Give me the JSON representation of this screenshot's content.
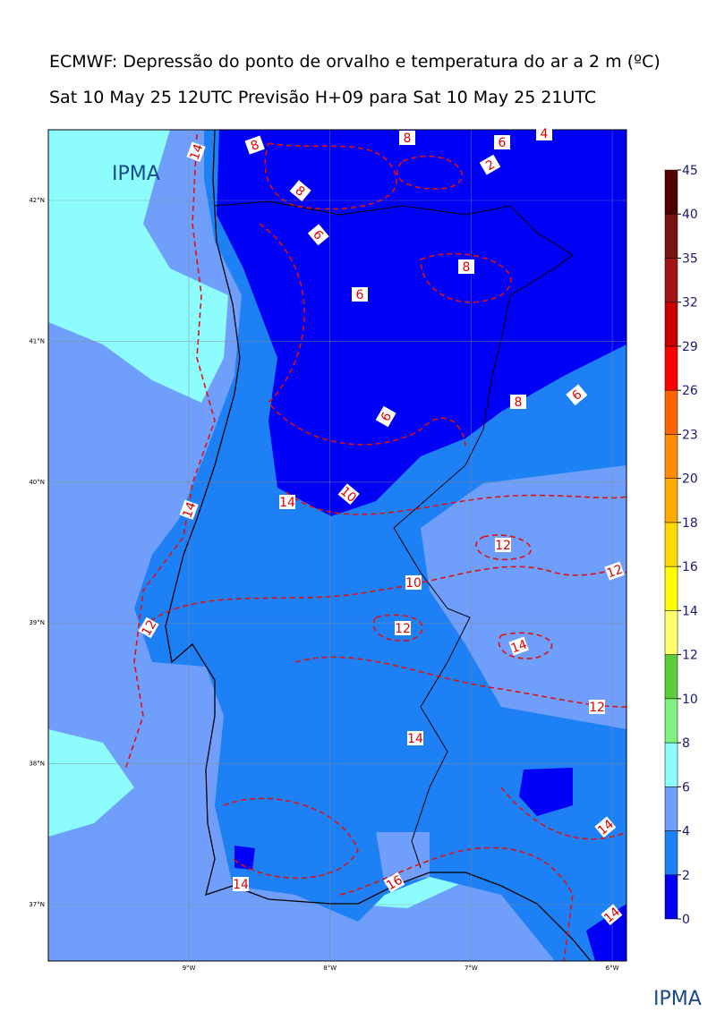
{
  "header": {
    "title": "ECMWF: Depressão do ponto de orvalho e temperatura do ar a 2 m (ºC)",
    "subtitle": "Sat 10 May 25 12UTC Previsão H+09 para Sat 10 May 25 21UTC"
  },
  "logo": "IPMA",
  "map": {
    "lat_labels": [
      "42°N",
      "41°N",
      "40°N",
      "39°N",
      "38°N",
      "37°N"
    ],
    "lon_labels": [
      "9°W",
      "8°W",
      "7°W",
      "6°W"
    ],
    "contour_labels": [
      "14",
      "14",
      "8",
      "8",
      "8",
      "6",
      "2",
      "4",
      "6",
      "8",
      "6",
      "6",
      "6",
      "8",
      "10",
      "14",
      "12",
      "12",
      "12",
      "10",
      "12",
      "14",
      "12",
      "14",
      "14",
      "16",
      "14",
      "14"
    ]
  },
  "colorbar": {
    "ticks": [
      0,
      2,
      4,
      6,
      8,
      10,
      12,
      14,
      16,
      18,
      20,
      23,
      26,
      29,
      32,
      35,
      40,
      45
    ],
    "colors": [
      "#0000f5",
      "#1e80f5",
      "#6f9efb",
      "#8cfcfc",
      "#80f080",
      "#5ccc3c",
      "#ffff6e",
      "#ffff00",
      "#ffd800",
      "#ffaa00",
      "#ff8c00",
      "#ff6400",
      "#ff0000",
      "#c80000",
      "#a01414",
      "#781414",
      "#500000"
    ]
  }
}
